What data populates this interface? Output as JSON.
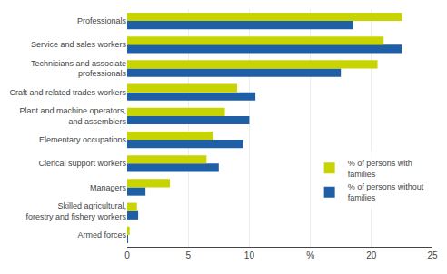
{
  "chart_data": {
    "type": "bar",
    "orientation": "horizontal",
    "categories": [
      "Armed forces",
      "Skilled agricultural,\nforestry and fishery workers",
      "Managers",
      "Clerical support workers",
      "Elementary occupations",
      "Plant and machine operators,\nand assemblers",
      "Craft and related trades workers",
      "Technicians and associate\nprofessionals",
      "Service and sales workers",
      "Professionals"
    ],
    "series": [
      {
        "name": "% of persons with\nfamilies",
        "color": "#c8d400",
        "values": [
          0.2,
          0.8,
          3.5,
          6.5,
          7.0,
          8.0,
          9.0,
          20.5,
          21.0,
          22.5
        ]
      },
      {
        "name": "% of persons without\nfamilies",
        "color": "#1f5fa6",
        "values": [
          0.05,
          0.9,
          1.5,
          7.5,
          9.5,
          10.0,
          10.5,
          17.5,
          22.5,
          18.5
        ]
      }
    ],
    "xlim": [
      0,
      25
    ],
    "xticks": [
      0,
      5,
      10,
      {
        "value": 15,
        "label": "%"
      },
      20,
      25
    ],
    "grid": true,
    "legend": "lower right"
  }
}
